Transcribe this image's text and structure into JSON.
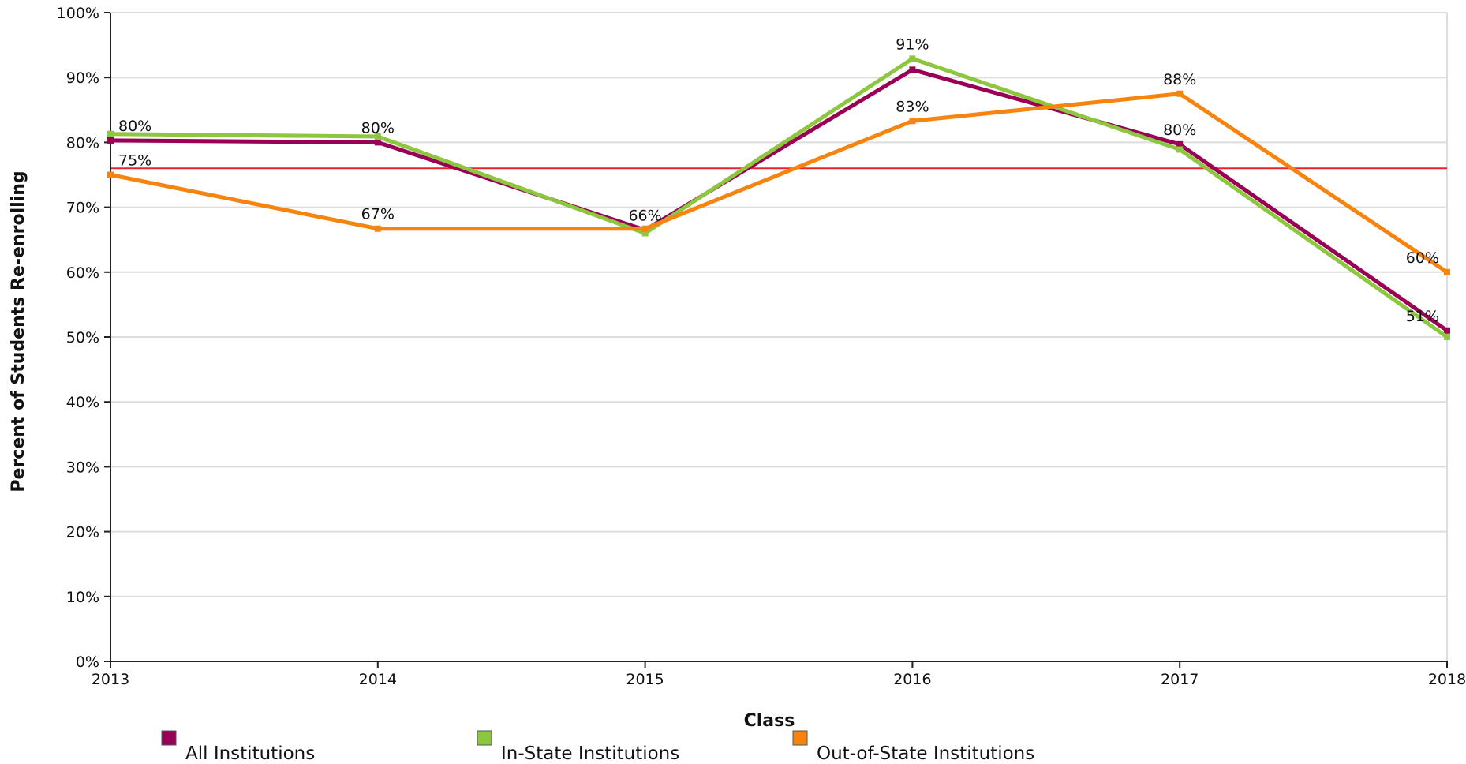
{
  "chart_data": {
    "type": "line",
    "title": "",
    "xlabel": "Class",
    "ylabel": "Percent of Students Re-enrolling",
    "x": [
      "2013",
      "2014",
      "2015",
      "2016",
      "2017",
      "2018"
    ],
    "ylim": [
      0,
      100
    ],
    "yticks": [
      0,
      10,
      20,
      30,
      40,
      50,
      60,
      70,
      80,
      90,
      100
    ],
    "ytick_labels": [
      "0%",
      "10%",
      "20%",
      "30%",
      "40%",
      "50%",
      "60%",
      "70%",
      "80%",
      "90%",
      "100%"
    ],
    "grid": true,
    "legend_position": "bottom",
    "series": [
      {
        "name": "All Institutions",
        "color": "#990055",
        "values": [
          80.3,
          80.0,
          66.5,
          91.2,
          79.7,
          51.0
        ]
      },
      {
        "name": "In-State Institutions",
        "color": "#8DC63F",
        "values": [
          81.3,
          80.9,
          66.0,
          92.9,
          78.9,
          50.0
        ]
      },
      {
        "name": "Out-of-State Institutions",
        "color": "#F7840E",
        "values": [
          75.0,
          66.7,
          66.7,
          83.3,
          87.5,
          60.0
        ]
      }
    ],
    "reference_line": {
      "value": 76.0,
      "color": "#EE2222"
    },
    "data_labels": [
      {
        "text": "80%",
        "x": "2013",
        "y": 80.3,
        "anchor": "start"
      },
      {
        "text": "75%",
        "x": "2013",
        "y": 75.0,
        "anchor": "start"
      },
      {
        "text": "80%",
        "x": "2014",
        "y": 80.0,
        "anchor": "middle"
      },
      {
        "text": "67%",
        "x": "2014",
        "y": 66.7,
        "anchor": "middle"
      },
      {
        "text": "66%",
        "x": "2015",
        "y": 66.5,
        "anchor": "middle"
      },
      {
        "text": "91%",
        "x": "2016",
        "y": 92.9,
        "anchor": "middle"
      },
      {
        "text": "83%",
        "x": "2016",
        "y": 83.3,
        "anchor": "middle"
      },
      {
        "text": "88%",
        "x": "2017",
        "y": 87.5,
        "anchor": "middle"
      },
      {
        "text": "80%",
        "x": "2017",
        "y": 79.7,
        "anchor": "middle"
      },
      {
        "text": "60%",
        "x": "2018",
        "y": 60.0,
        "anchor": "end"
      },
      {
        "text": "51%",
        "x": "2018",
        "y": 51.0,
        "anchor": "end"
      }
    ]
  }
}
